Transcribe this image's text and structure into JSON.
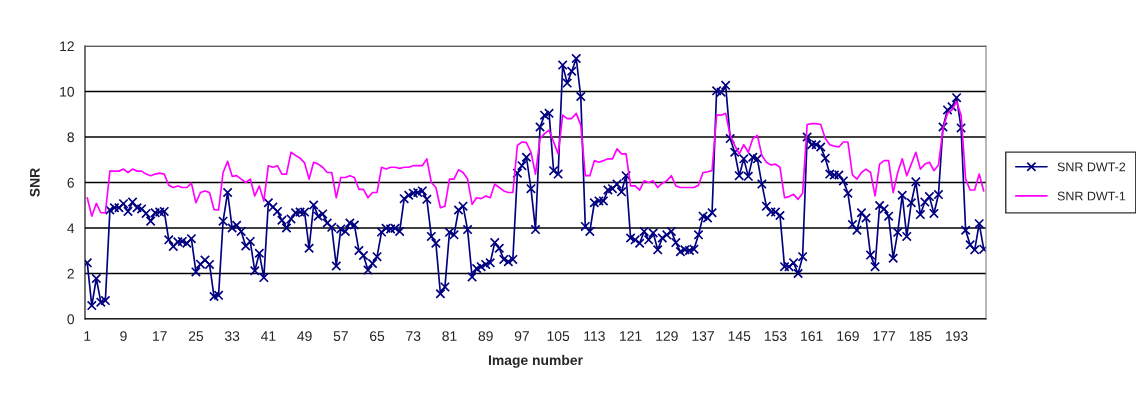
{
  "chart_data": {
    "type": "line",
    "xlabel": "Image number",
    "ylabel": "SNR",
    "categories": [
      "1",
      null,
      null,
      null,
      null,
      null,
      null,
      null,
      "9",
      null,
      null,
      null,
      null,
      null,
      null,
      null,
      "17",
      null,
      null,
      null,
      null,
      null,
      null,
      null,
      "25",
      null,
      null,
      null,
      null,
      null,
      null,
      null,
      "33",
      null,
      null,
      null,
      null,
      null,
      null,
      null,
      "41",
      null,
      null,
      null,
      null,
      null,
      null,
      null,
      "49",
      null,
      null,
      null,
      null,
      null,
      null,
      null,
      "57",
      null,
      null,
      null,
      null,
      null,
      null,
      null,
      "65",
      null,
      null,
      null,
      null,
      null,
      null,
      null,
      "73",
      null,
      null,
      null,
      null,
      null,
      null,
      null,
      "81",
      null,
      null,
      null,
      null,
      null,
      null,
      null,
      "89",
      null,
      null,
      null,
      null,
      null,
      null,
      null,
      "97",
      null,
      null,
      null,
      null,
      null,
      null,
      null,
      "105",
      null,
      null,
      null,
      null,
      null,
      null,
      null,
      "113",
      null,
      null,
      null,
      null,
      null,
      null,
      null,
      "121",
      null,
      null,
      null,
      null,
      null,
      null,
      null,
      "129",
      null,
      null,
      null,
      null,
      null,
      null,
      null,
      "137",
      null,
      null,
      null,
      null,
      null,
      null,
      null,
      "145",
      null,
      null,
      null,
      null,
      null,
      null,
      null,
      "153",
      null,
      null,
      null,
      null,
      null,
      null,
      null,
      "161",
      null,
      null,
      null,
      null,
      null,
      null,
      null,
      "169",
      null,
      null,
      null,
      null,
      null,
      null,
      null,
      "177",
      null,
      null,
      null,
      null,
      null,
      null,
      null,
      "185",
      null,
      null,
      null,
      null,
      null,
      null,
      null,
      "193",
      null,
      null,
      null,
      null,
      null,
      null
    ],
    "series": [
      {
        "name": "SNR DWT-2",
        "color": "#000080",
        "marker": "cross",
        "values": [
          2.47,
          0.59,
          1.78,
          0.74,
          0.81,
          4.79,
          4.89,
          4.89,
          5.07,
          4.73,
          5.14,
          4.89,
          4.84,
          4.64,
          4.3,
          4.67,
          4.7,
          4.73,
          3.48,
          3.19,
          3.39,
          3.41,
          3.33,
          3.53,
          2.07,
          2.41,
          2.59,
          2.4,
          0.99,
          1.04,
          4.3,
          5.56,
          4.0,
          4.12,
          3.85,
          3.21,
          3.41,
          2.12,
          2.89,
          1.82,
          5.11,
          4.92,
          4.73,
          4.34,
          4.0,
          4.4,
          4.67,
          4.7,
          4.7,
          3.11,
          5.01,
          4.52,
          4.62,
          4.22,
          4.03,
          2.33,
          3.96,
          3.85,
          4.22,
          4.13,
          3.01,
          2.79,
          2.15,
          2.44,
          2.74,
          3.82,
          3.99,
          3.96,
          3.99,
          3.85,
          5.29,
          5.44,
          5.53,
          5.56,
          5.63,
          5.26,
          3.63,
          3.33,
          1.11,
          1.41,
          3.81,
          3.7,
          4.79,
          4.96,
          3.93,
          1.85,
          2.22,
          2.3,
          2.4,
          2.47,
          3.36,
          3.11,
          2.62,
          2.52,
          2.62,
          6.41,
          6.74,
          7.11,
          5.73,
          3.93,
          8.44,
          8.96,
          9.04,
          6.52,
          6.37,
          11.16,
          10.37,
          10.89,
          11.45,
          9.78,
          4.07,
          3.85,
          5.11,
          5.19,
          5.19,
          5.67,
          5.73,
          5.93,
          5.59,
          6.3,
          3.56,
          3.48,
          3.33,
          3.85,
          3.48,
          3.78,
          3.04,
          3.56,
          3.7,
          3.85,
          3.36,
          2.96,
          3.04,
          3.01,
          3.07,
          3.7,
          4.52,
          4.44,
          4.67,
          10.03,
          9.97,
          10.27,
          7.93,
          7.33,
          6.3,
          7.04,
          6.27,
          7.11,
          7.04,
          5.93,
          4.96,
          4.7,
          4.7,
          4.55,
          2.3,
          2.3,
          2.47,
          2.0,
          2.74,
          8.0,
          7.66,
          7.66,
          7.56,
          7.07,
          6.37,
          6.33,
          6.33,
          6.07,
          5.53,
          4.15,
          3.9,
          4.67,
          4.44,
          2.81,
          2.3,
          4.99,
          4.84,
          4.52,
          2.67,
          3.81,
          5.44,
          3.63,
          5.11,
          6.03,
          4.59,
          5.14,
          5.38,
          4.64,
          5.47,
          8.44,
          9.19,
          9.33,
          9.73,
          8.4,
          3.9,
          3.26,
          3.04,
          4.19,
          3.07
        ]
      },
      {
        "name": "SNR DWT-1",
        "color": "#ff00ff",
        "marker": "none",
        "values": [
          5.33,
          4.52,
          5.08,
          4.67,
          4.67,
          6.5,
          6.5,
          6.5,
          6.59,
          6.44,
          6.59,
          6.5,
          6.5,
          6.37,
          6.3,
          6.37,
          6.41,
          6.37,
          5.88,
          5.78,
          5.85,
          5.78,
          5.78,
          5.97,
          5.11,
          5.56,
          5.63,
          5.56,
          4.81,
          4.79,
          6.44,
          6.93,
          6.27,
          6.3,
          6.15,
          6.0,
          6.15,
          5.41,
          5.85,
          5.19,
          6.74,
          6.67,
          6.74,
          6.37,
          6.37,
          7.33,
          7.19,
          7.07,
          6.86,
          6.15,
          6.89,
          6.81,
          6.67,
          6.44,
          6.44,
          5.33,
          6.22,
          6.22,
          6.3,
          6.22,
          5.7,
          5.7,
          5.33,
          5.56,
          5.56,
          6.67,
          6.59,
          6.67,
          6.67,
          6.62,
          6.67,
          6.67,
          6.74,
          6.74,
          6.74,
          7.04,
          6.0,
          5.78,
          4.89,
          4.96,
          6.15,
          6.15,
          6.56,
          6.44,
          6.15,
          5.04,
          5.33,
          5.29,
          5.41,
          5.33,
          5.93,
          5.78,
          5.63,
          5.56,
          5.56,
          7.63,
          7.78,
          7.75,
          7.33,
          6.37,
          7.93,
          8.15,
          8.3,
          7.78,
          7.26,
          8.96,
          8.81,
          8.81,
          9.04,
          8.52,
          6.3,
          6.3,
          6.96,
          6.89,
          6.96,
          7.04,
          7.04,
          7.48,
          7.26,
          7.26,
          5.85,
          5.85,
          5.67,
          6.07,
          6.0,
          6.07,
          5.78,
          5.97,
          6.07,
          6.3,
          5.85,
          5.78,
          5.78,
          5.78,
          5.78,
          5.88,
          6.44,
          6.47,
          6.52,
          8.96,
          8.96,
          9.04,
          8.07,
          7.63,
          7.26,
          7.66,
          7.33,
          7.93,
          8.07,
          7.19,
          6.89,
          6.77,
          6.81,
          6.67,
          5.33,
          5.38,
          5.48,
          5.26,
          5.53,
          8.55,
          8.59,
          8.59,
          8.55,
          7.93,
          7.66,
          7.6,
          7.56,
          7.78,
          7.78,
          6.33,
          6.15,
          6.44,
          6.59,
          6.44,
          5.41,
          6.81,
          6.96,
          6.96,
          5.56,
          6.44,
          7.04,
          6.3,
          6.81,
          7.33,
          6.59,
          6.81,
          6.89,
          6.52,
          6.77,
          8.37,
          9.04,
          9.19,
          9.56,
          8.96,
          6.15,
          5.67,
          5.67,
          6.37,
          5.63
        ]
      }
    ],
    "ylim": [
      0,
      12
    ],
    "yticks": [
      0,
      2,
      4,
      6,
      8,
      10,
      12
    ],
    "grid": "y",
    "legend": "right",
    "line_style": "solid"
  }
}
